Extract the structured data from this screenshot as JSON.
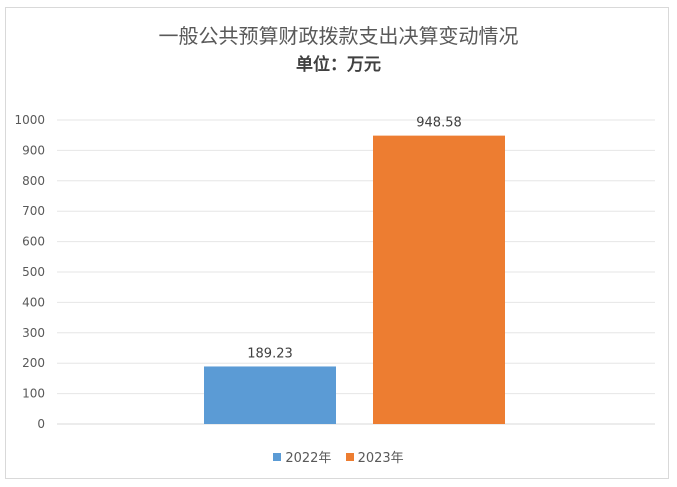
{
  "chart_data": {
    "type": "bar",
    "title": "一般公共预算财政拨款支出决算变动情况",
    "subtitle": "单位：万元",
    "categories": [
      ""
    ],
    "series": [
      {
        "name": "2022年",
        "values": [
          189.23
        ],
        "color": "#5b9bd5"
      },
      {
        "name": "2023年",
        "values": [
          948.58
        ],
        "color": "#ed7d31"
      }
    ],
    "ylim": [
      0,
      1000
    ],
    "yticks": [
      0,
      100,
      200,
      300,
      400,
      500,
      600,
      700,
      800,
      900,
      1000
    ],
    "data_labels": [
      "189.23",
      "948.58"
    ],
    "grid": true,
    "legend": "bottom"
  }
}
